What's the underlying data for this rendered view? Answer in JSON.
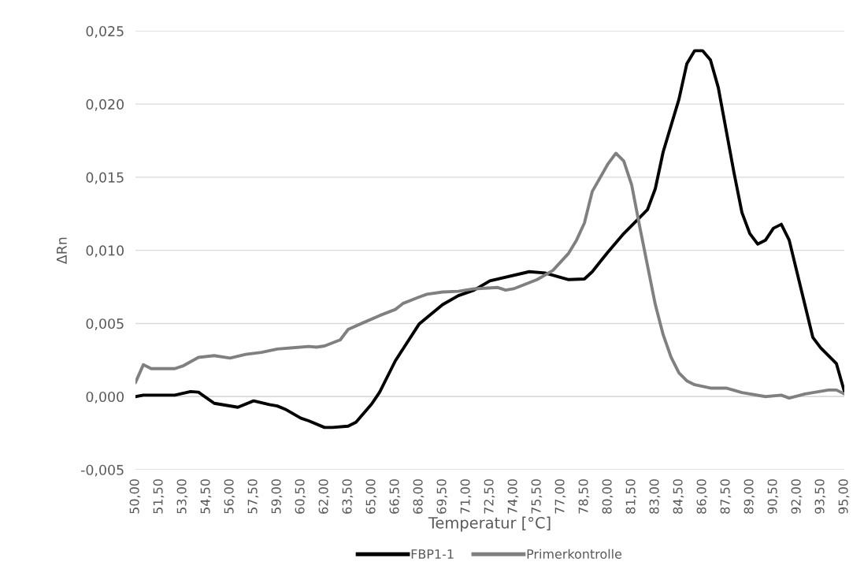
{
  "chart_data": {
    "type": "line",
    "xlabel": "Temperatur [°C]",
    "ylabel": "ΔRn",
    "xlim": [
      50,
      95
    ],
    "xticks": [
      {
        "value": 50,
        "label": "50,00"
      },
      {
        "value": 51.5,
        "label": "51,50"
      },
      {
        "value": 53,
        "label": "53,00"
      },
      {
        "value": 54.5,
        "label": "54,50"
      },
      {
        "value": 56,
        "label": "56,00"
      },
      {
        "value": 57.5,
        "label": "57,50"
      },
      {
        "value": 59,
        "label": "59,00"
      },
      {
        "value": 60.5,
        "label": "60,50"
      },
      {
        "value": 62,
        "label": "62,00"
      },
      {
        "value": 63.5,
        "label": "63,50"
      },
      {
        "value": 65,
        "label": "65,00"
      },
      {
        "value": 66.5,
        "label": "66,50"
      },
      {
        "value": 68,
        "label": "68,00"
      },
      {
        "value": 69.5,
        "label": "69,50"
      },
      {
        "value": 71,
        "label": "71,00"
      },
      {
        "value": 72.5,
        "label": "72,50"
      },
      {
        "value": 74,
        "label": "74,00"
      },
      {
        "value": 75.5,
        "label": "75,50"
      },
      {
        "value": 77,
        "label": "77,00"
      },
      {
        "value": 78.5,
        "label": "78,50"
      },
      {
        "value": 80,
        "label": "80,00"
      },
      {
        "value": 81.5,
        "label": "81,50"
      },
      {
        "value": 83,
        "label": "83,00"
      },
      {
        "value": 84.5,
        "label": "84,50"
      },
      {
        "value": 86,
        "label": "86,00"
      },
      {
        "value": 87.5,
        "label": "87,50"
      },
      {
        "value": 89,
        "label": "89,00"
      },
      {
        "value": 90.5,
        "label": "90,50"
      },
      {
        "value": 92,
        "label": "92,00"
      },
      {
        "value": 93.5,
        "label": "93,50"
      },
      {
        "value": 95,
        "label": "95,00"
      }
    ],
    "ylim": [
      -0.005,
      0.025
    ],
    "yticks": [
      {
        "value": -0.005,
        "label": "-0,005"
      },
      {
        "value": 0,
        "label": "0,000"
      },
      {
        "value": 0.005,
        "label": "0,005"
      },
      {
        "value": 0.01,
        "label": "0,010"
      },
      {
        "value": 0.015,
        "label": "0,015"
      },
      {
        "value": 0.02,
        "label": "0,020"
      },
      {
        "value": 0.025,
        "label": "0,025"
      }
    ],
    "grid": "y",
    "legend": "bottom",
    "marker": "none",
    "line_style": "solid",
    "series": [
      {
        "name": "FBP1-1",
        "color": "#000000",
        "x": [
          50,
          50.5,
          52.5,
          53.5,
          54,
          55,
          56.5,
          57.5,
          58.5,
          59,
          59.5,
          60.5,
          61,
          62,
          62.5,
          63.5,
          64,
          65,
          65.5,
          66.5,
          68,
          69.5,
          70.5,
          71.5,
          72.5,
          75,
          76,
          77.5,
          78.5,
          79,
          80,
          81,
          82.5,
          83,
          83.5,
          84.5,
          85,
          85.5,
          86,
          86.5,
          87,
          88,
          88.5,
          89,
          89.5,
          90,
          90.5,
          91,
          91.5,
          93,
          93.5,
          94.5,
          95
        ],
        "values": [
          0.0,
          0.0001,
          0.0001,
          0.00034,
          0.0003,
          -0.00046,
          -0.00073,
          -0.00029,
          -0.00055,
          -0.00064,
          -0.00086,
          -0.00148,
          -0.00166,
          -0.00211,
          -0.00211,
          -0.00202,
          -0.00175,
          -0.0005,
          0.0003,
          0.00245,
          0.00495,
          0.00629,
          0.0069,
          0.00728,
          0.00791,
          0.00854,
          0.00845,
          0.008,
          0.00804,
          0.00854,
          0.00989,
          0.01115,
          0.01277,
          0.01421,
          0.01673,
          0.02032,
          0.02275,
          0.02365,
          0.02365,
          0.02302,
          0.02113,
          0.01529,
          0.01259,
          0.01115,
          0.01043,
          0.0107,
          0.01151,
          0.01178,
          0.0107,
          0.00405,
          0.00333,
          0.00225,
          0.00036
        ]
      },
      {
        "name": "Primerkontrolle",
        "color": "#808080",
        "x": [
          50,
          50.5,
          51,
          52.5,
          53,
          54,
          55,
          56,
          57,
          58,
          59,
          60,
          61,
          61.5,
          62,
          63,
          63.5,
          64.5,
          65.5,
          66.5,
          67,
          68,
          68.5,
          69.5,
          70.5,
          71.5,
          73,
          73.5,
          74,
          75.5,
          76.5,
          77.5,
          78,
          78.5,
          79,
          80,
          80.5,
          81,
          81.5,
          82,
          83,
          83.5,
          84,
          84.5,
          85,
          85.5,
          86.5,
          87.5,
          88.5,
          90,
          91,
          91.5,
          92.5,
          94,
          94.5,
          95
        ],
        "values": [
          0.00096,
          0.00218,
          0.00191,
          0.00191,
          0.00209,
          0.00268,
          0.0028,
          0.00263,
          0.00289,
          0.00302,
          0.00325,
          0.00334,
          0.00343,
          0.00338,
          0.00346,
          0.00388,
          0.00459,
          0.00507,
          0.00554,
          0.00596,
          0.00638,
          0.0068,
          0.007,
          0.00715,
          0.0072,
          0.00737,
          0.00746,
          0.00728,
          0.00737,
          0.008,
          0.00863,
          0.0098,
          0.0107,
          0.01187,
          0.01403,
          0.01592,
          0.01664,
          0.0161,
          0.01448,
          0.01169,
          0.0063,
          0.00423,
          0.0027,
          0.00162,
          0.00108,
          0.00081,
          0.00058,
          0.00058,
          0.00027,
          0.0,
          0.0001,
          -0.0001,
          0.00018,
          0.00045,
          0.00045,
          0.00018
        ]
      }
    ]
  }
}
